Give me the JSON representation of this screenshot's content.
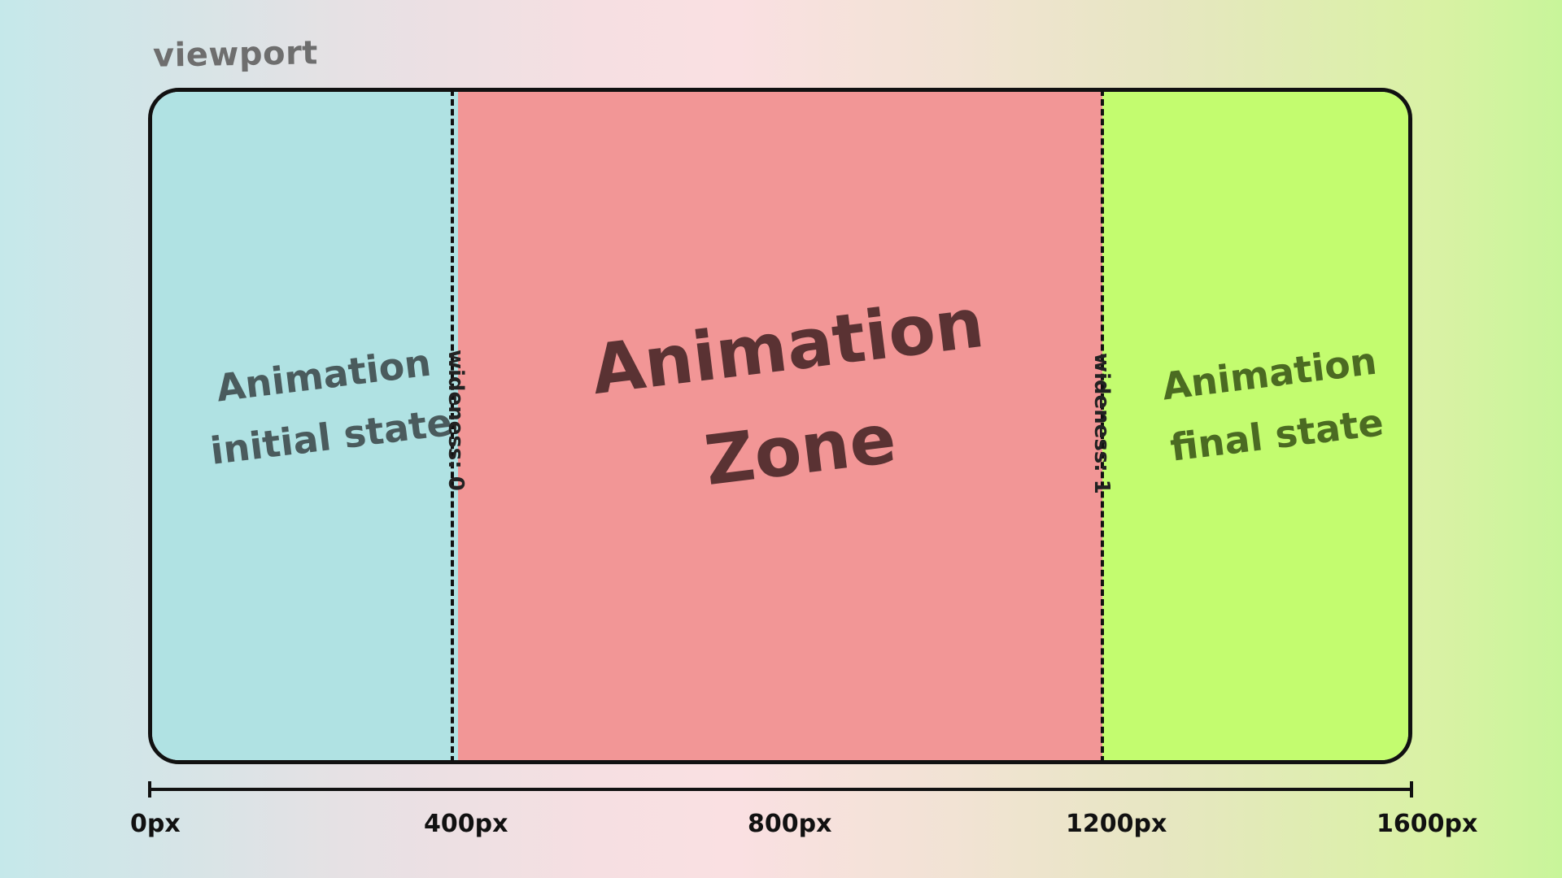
{
  "viewport_label": "viewport",
  "zones": {
    "initial": {
      "line1": "Animation",
      "line2": "initial state",
      "color": "#b0e2e3"
    },
    "animation": {
      "line1": "Animation",
      "line2": "Zone",
      "color": "#f29696"
    },
    "final": {
      "line1": "Animation",
      "line2": "final state",
      "color": "#c3fc6f"
    }
  },
  "dividers": {
    "start_label": "wideness: 0",
    "end_label": "wideness: 1"
  },
  "ruler": {
    "ticks": [
      "0px",
      "400px",
      "800px",
      "1200px",
      "1600px"
    ]
  }
}
